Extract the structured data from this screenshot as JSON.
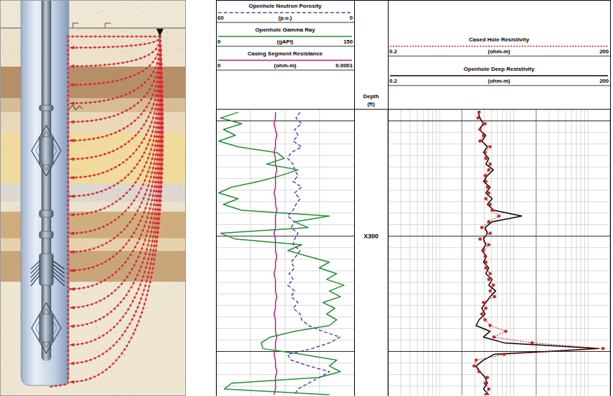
{
  "chart_data": {
    "type": "well_log",
    "grid": true,
    "depth_label": "Depth",
    "depth_unit": "(ft)",
    "depth": [
      289.25,
      289.75,
      290.25,
      290.75,
      291.25,
      291.75,
      292.25,
      292.75,
      293.25,
      293.75,
      294.25,
      294.75,
      295.25,
      295.75,
      296.25,
      296.75,
      297.25,
      297.75,
      298.25,
      298.75,
      299.25,
      299.75,
      300.25,
      300.75,
      301.25,
      301.75,
      302.25,
      302.75,
      303.25,
      303.75,
      304.25,
      304.75,
      305.25,
      305.75,
      306.25,
      306.75,
      307.25,
      307.75,
      308.25,
      308.75,
      309.25,
      309.75,
      310.25,
      310.75,
      311.25,
      311.75,
      312.25,
      312.75,
      313.25,
      313.75
    ],
    "ylim": [
      289,
      313.8
    ],
    "yticks": [
      {
        "value": 300,
        "label": "X300"
      }
    ],
    "ygrid": [
      290,
      291,
      292,
      293,
      294,
      295,
      296,
      297,
      298,
      299,
      300,
      301,
      302,
      303,
      304,
      305,
      306,
      307,
      308,
      309,
      310,
      311,
      312,
      313
    ],
    "tracks": [
      {
        "xlim": [
          0,
          150
        ],
        "xgrid": [
          0,
          37.5,
          75,
          112.5,
          150
        ],
        "series": [
          {
            "name": "Openhole Neutron Porosity",
            "unit": "(p.u.)",
            "color": "#4a4aa8",
            "line_style": "dashed",
            "xlim": [
              60,
              0
            ],
            "values": [
              23.5,
              25.3,
              22.8,
              25.9,
              24.4,
              26.5,
              22.8,
              27.4,
              28.9,
              26.5,
              25.9,
              24.4,
              26.5,
              22.8,
              25.9,
              23.5,
              25.3,
              26.5,
              28.9,
              25.9,
              27.4,
              24.4,
              25.9,
              26.5,
              23.5,
              25.3,
              27.4,
              25.9,
              28.3,
              26.5,
              28.9,
              25.9,
              27.4,
              24.4,
              26.5,
              23.5,
              22.8,
              19.8,
              13.7,
              6.1,
              10.7,
              18.3,
              28.9,
              27.4,
              19.8,
              10.7,
              15.2,
              19.8,
              24.4,
              25.9
            ]
          },
          {
            "name": "Openhole Gamma Ray",
            "unit": "(gAPI)",
            "color": "#1f8f2e",
            "line_style": "solid",
            "xlim": [
              0,
              150
            ],
            "values": [
              24,
              5,
              28,
              8,
              21,
              3,
              24,
              66,
              74,
              55,
              89,
              70,
              47,
              17,
              3,
              24,
              8,
              28,
              123,
              85,
              100,
              5,
              21,
              93,
              78,
              100,
              123,
              112,
              131,
              120,
              139,
              123,
              135,
              116,
              129,
              120,
              131,
              123,
              85,
              59,
              49,
              51,
              93,
              131,
              123,
              135,
              112,
              17,
              9,
              123
            ]
          },
          {
            "name": "Casing Segment Resistance",
            "unit": "(ohm-m)",
            "color": "#c4187c",
            "line_style": "solid",
            "xlim": [
              0,
              0.0001
            ],
            "values": [
              4.3e-05,
              4.3e-05,
              4.2e-05,
              4.3e-05,
              4.4e-05,
              4.3e-05,
              4.3e-05,
              4.2e-05,
              4.3e-05,
              4.3e-05,
              4.4e-05,
              4.3e-05,
              4.3e-05,
              4.3e-05,
              4.2e-05,
              4.3e-05,
              4.3e-05,
              4.4e-05,
              4.3e-05,
              4.3e-05,
              4.3e-05,
              4.2e-05,
              4.3e-05,
              4.3e-05,
              4.3e-05,
              4.4e-05,
              4.3e-05,
              4.3e-05,
              4.2e-05,
              4.3e-05,
              4.3e-05,
              4.3e-05,
              4.4e-05,
              4.3e-05,
              4.3e-05,
              4.2e-05,
              4.3e-05,
              4.3e-05,
              4.3e-05,
              4.4e-05,
              4.3e-05,
              4.3e-05,
              4.2e-05,
              4.3e-05,
              4.3e-05,
              4.4e-05,
              4.3e-05,
              4.3e-05,
              4.3e-05,
              4.2e-05
            ]
          }
        ]
      },
      {
        "log": "x",
        "xlim": [
          0.2,
          200
        ],
        "xgrid": [
          0.2,
          0.3,
          0.4,
          0.5,
          0.6,
          0.7,
          0.8,
          0.9,
          1,
          2,
          3,
          4,
          5,
          6,
          7,
          8,
          9,
          10,
          20,
          30,
          40,
          50,
          60,
          70,
          80,
          90,
          100,
          200
        ],
        "series": [
          {
            "name": "Cased Hole Resistivity",
            "unit": "(ohm-m)",
            "color": "#d82020",
            "line_style": "dotted",
            "marker": "circle",
            "xlim": [
              0.2,
              200
            ],
            "values": [
              3.4,
              3.3,
              4.1,
              3.5,
              3.9,
              3.5,
              4.8,
              4.1,
              4.2,
              4.8,
              4.6,
              4.1,
              4.2,
              4.4,
              4.6,
              4.2,
              4.8,
              5.1,
              6.3,
              4.6,
              3.7,
              4.8,
              3.5,
              4.6,
              3.9,
              4.1,
              4.2,
              4.2,
              4.8,
              4.6,
              5.3,
              4.8,
              5.5,
              3.9,
              4.2,
              3.7,
              4.1,
              4.8,
              7.8,
              5.4,
              17.6,
              160,
              7.4,
              3.1,
              2.9,
              3.4,
              4.4,
              4.1,
              4.6,
              4.2
            ]
          },
          {
            "name": "Openhole Deep Resistivity",
            "unit": "(ohm-m)",
            "color": "#000000",
            "line_style": "solid",
            "xlim": [
              0.2,
              200
            ],
            "values": [
              3.3,
              3.5,
              3.9,
              3.4,
              4.2,
              3.7,
              4.4,
              3.9,
              4.6,
              4.2,
              5.3,
              4.4,
              3.9,
              4.8,
              4.2,
              5.1,
              4.4,
              5.4,
              12.8,
              5.1,
              4.1,
              4.4,
              3.9,
              4.2,
              3.7,
              4.3,
              3.9,
              4.6,
              4.2,
              5.1,
              4.6,
              5.7,
              4.8,
              4.2,
              3.7,
              4.1,
              3.4,
              3.1,
              4.8,
              3.9,
              7.4,
              138,
              5.4,
              3.9,
              3.1,
              3.5,
              4.1,
              4.4,
              3.9,
              4.6
            ]
          }
        ]
      }
    ]
  }
}
